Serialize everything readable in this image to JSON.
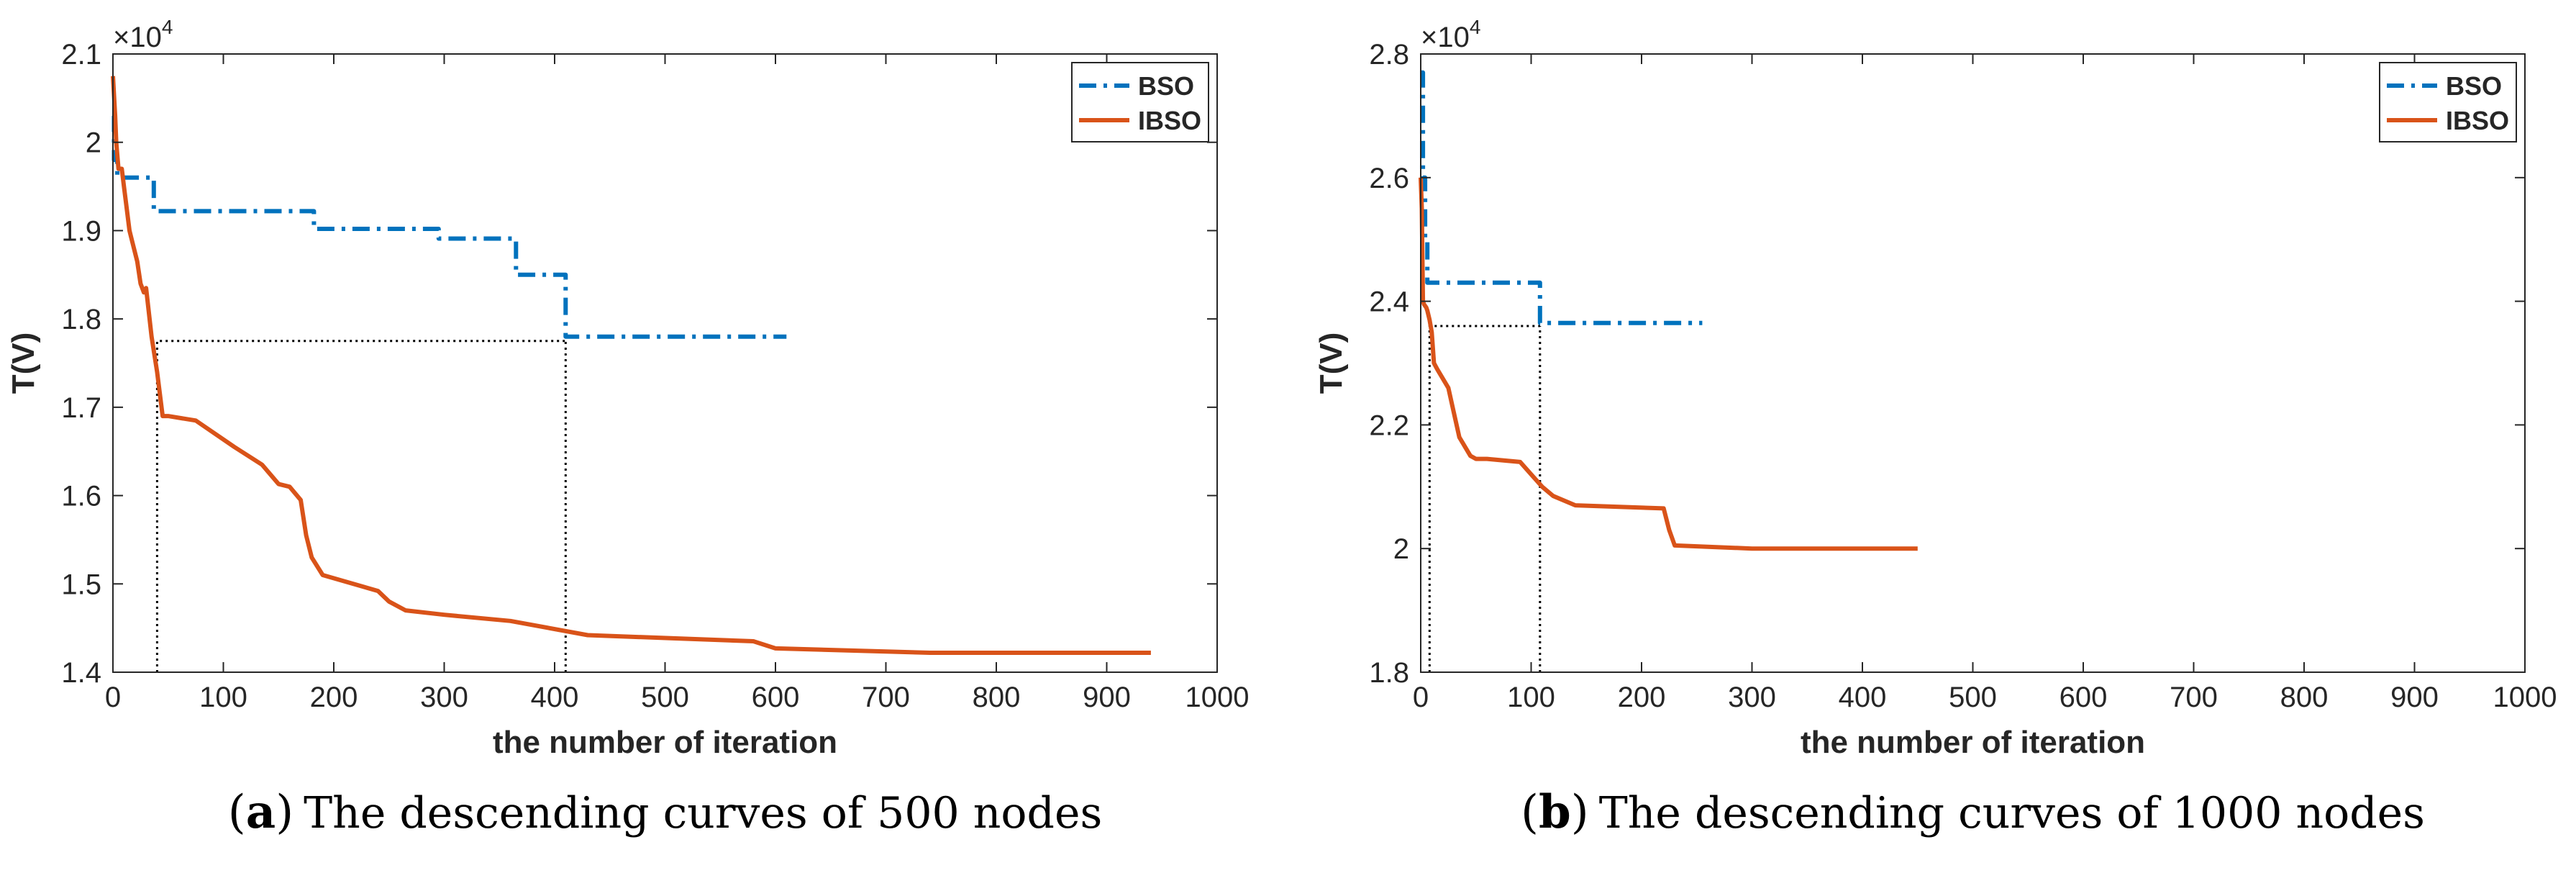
{
  "chart_data": [
    {
      "type": "line",
      "panel_id": "a",
      "caption_letter": "a",
      "caption_text": "The descending curves of 500 nodes",
      "xlabel": "the number of iteration",
      "ylabel": "T(V)",
      "exponent_base": "×10",
      "exponent_power": "4",
      "xlim": [
        0,
        1000
      ],
      "ylim": [
        14000,
        21000
      ],
      "xticks": [
        0,
        100,
        200,
        300,
        400,
        500,
        600,
        700,
        800,
        900,
        1000
      ],
      "xtick_labels": [
        "0",
        "100",
        "200",
        "300",
        "400",
        "500",
        "600",
        "700",
        "800",
        "900",
        "1000"
      ],
      "yticks": [
        14000,
        15000,
        16000,
        17000,
        18000,
        19000,
        20000,
        21000
      ],
      "ytick_labels": [
        "1.4",
        "1.5",
        "1.6",
        "1.7",
        "1.8",
        "1.9",
        "2",
        "2.1"
      ],
      "legend": [
        "BSO",
        "IBSO"
      ],
      "legend_position": "top-right",
      "series": [
        {
          "name": "BSO",
          "color": "#0072BD",
          "style": "dashdot",
          "x": [
            0,
            1,
            1,
            4,
            4,
            37,
            37,
            182,
            182,
            295,
            295,
            365,
            365,
            410,
            410,
            610
          ],
          "y": [
            20300,
            20300,
            19800,
            19800,
            19600,
            19600,
            19220,
            19220,
            19020,
            19020,
            18910,
            18910,
            18500,
            18500,
            17800,
            17800
          ]
        },
        {
          "name": "IBSO",
          "color": "#D95319",
          "style": "solid",
          "x": [
            0,
            2,
            3,
            5,
            8,
            10,
            12,
            15,
            18,
            22,
            25,
            28,
            30,
            35,
            40,
            45,
            50,
            75,
            110,
            135,
            150,
            160,
            170,
            175,
            180,
            190,
            240,
            250,
            265,
            300,
            360,
            430,
            580,
            600,
            740,
            940
          ],
          "y": [
            20750,
            20300,
            20000,
            19700,
            19700,
            19500,
            19300,
            19000,
            18850,
            18650,
            18400,
            18300,
            18350,
            17800,
            17400,
            16900,
            16900,
            16850,
            16550,
            16350,
            16130,
            16100,
            15950,
            15550,
            15300,
            15100,
            14920,
            14800,
            14700,
            14650,
            14580,
            14420,
            14350,
            14270,
            14220,
            14220
          ]
        }
      ],
      "reference_lines": [
        {
          "x": [
            40,
            40,
            410
          ],
          "y": [
            14000,
            17750,
            17750
          ]
        },
        {
          "x": [
            410,
            410
          ],
          "y": [
            14000,
            17750
          ]
        }
      ]
    },
    {
      "type": "line",
      "panel_id": "b",
      "caption_letter": "b",
      "caption_text": "The descending curves of 1000 nodes",
      "xlabel": "the number of iteration",
      "ylabel": "T(V)",
      "exponent_base": "×10",
      "exponent_power": "4",
      "xlim": [
        0,
        1000
      ],
      "ylim": [
        18000,
        28000
      ],
      "xticks": [
        0,
        100,
        200,
        300,
        400,
        500,
        600,
        700,
        800,
        900,
        1000
      ],
      "xtick_labels": [
        "0",
        "100",
        "200",
        "300",
        "400",
        "500",
        "600",
        "700",
        "800",
        "900",
        "1000"
      ],
      "yticks": [
        18000,
        20000,
        22000,
        24000,
        26000,
        28000
      ],
      "ytick_labels": [
        "1.8",
        "2",
        "2.2",
        "2.4",
        "2.6",
        "2.8"
      ],
      "legend": [
        "BSO",
        "IBSO"
      ],
      "legend_position": "top-right",
      "series": [
        {
          "name": "BSO",
          "color": "#0072BD",
          "style": "dashdot",
          "x": [
            0,
            2,
            2,
            4,
            4,
            6,
            6,
            108,
            108,
            255
          ],
          "y": [
            27700,
            27700,
            26000,
            26000,
            25000,
            25000,
            24300,
            24300,
            23650,
            23650
          ]
        },
        {
          "name": "IBSO",
          "color": "#D95319",
          "style": "solid",
          "x": [
            0,
            1,
            2,
            3,
            5,
            6,
            8,
            10,
            12,
            15,
            25,
            30,
            35,
            45,
            50,
            60,
            90,
            100,
            110,
            120,
            140,
            220,
            225,
            230,
            300,
            450
          ],
          "y": [
            26000,
            25500,
            24000,
            23950,
            23900,
            23850,
            23700,
            23500,
            23000,
            22900,
            22600,
            22200,
            21800,
            21500,
            21450,
            21450,
            21400,
            21200,
            21000,
            20850,
            20700,
            20650,
            20300,
            20050,
            20000,
            20000
          ]
        }
      ],
      "reference_lines": [
        {
          "x": [
            8,
            8,
            108
          ],
          "y": [
            18000,
            23600,
            23600
          ]
        },
        {
          "x": [
            108,
            108
          ],
          "y": [
            18000,
            23600
          ]
        }
      ]
    }
  ]
}
